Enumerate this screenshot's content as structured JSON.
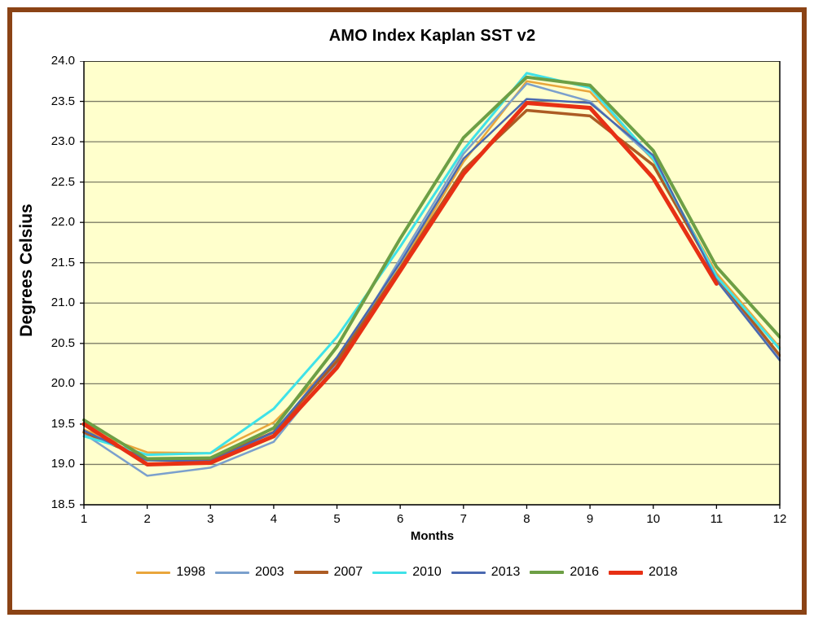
{
  "frame": {
    "border_color": "#8B4315",
    "background_color": "#FFFFFF"
  },
  "chart_data": {
    "type": "line",
    "title": "AMO Index Kaplan SST v2",
    "xlabel": "Months",
    "ylabel": "Degrees Celsius",
    "xlim": [
      1,
      12
    ],
    "ylim": [
      18.5,
      24.0
    ],
    "grid": "horizontal",
    "grid_color": "#7C7C66",
    "plot_bg": "#FFFFCC",
    "axis_color": "#000000",
    "legend_position": "bottom",
    "xticks": [
      "1",
      "2",
      "3",
      "4",
      "5",
      "6",
      "7",
      "8",
      "9",
      "10",
      "11",
      "12"
    ],
    "yticks": [
      "24.0",
      "23.5",
      "23.0",
      "22.5",
      "22.0",
      "21.5",
      "21.0",
      "20.5",
      "20.0",
      "19.5",
      "19.0",
      "18.5"
    ],
    "x": [
      1,
      2,
      3,
      4,
      5,
      6,
      7,
      8,
      9,
      10,
      11,
      12
    ],
    "series": [
      {
        "name": "1998",
        "color": "#E9A63C",
        "width": 2.5,
        "values": [
          19.43,
          19.15,
          19.14,
          19.52,
          20.3,
          21.45,
          22.75,
          23.75,
          23.62,
          22.77,
          21.37,
          20.45
        ]
      },
      {
        "name": "2003",
        "color": "#7BA0CD",
        "width": 2.5,
        "values": [
          19.38,
          18.86,
          18.96,
          19.28,
          20.25,
          21.55,
          22.85,
          23.72,
          23.5,
          22.79,
          21.3,
          20.3
        ]
      },
      {
        "name": "2007",
        "color": "#AC5C24",
        "width": 3.5,
        "values": [
          19.4,
          19.06,
          19.06,
          19.4,
          20.28,
          21.43,
          22.65,
          23.39,
          23.32,
          22.71,
          21.33,
          20.35
        ]
      },
      {
        "name": "2010",
        "color": "#3FE2E8",
        "width": 3,
        "values": [
          19.35,
          19.12,
          19.14,
          19.69,
          20.58,
          21.7,
          22.9,
          23.85,
          23.67,
          22.79,
          21.33,
          20.43
        ]
      },
      {
        "name": "2013",
        "color": "#4A69B0",
        "width": 2.5,
        "values": [
          19.42,
          19.05,
          19.04,
          19.4,
          20.33,
          21.5,
          22.79,
          23.53,
          23.48,
          22.83,
          21.28,
          20.29
        ]
      },
      {
        "name": "2016",
        "color": "#6D9F45",
        "width": 4,
        "values": [
          19.55,
          19.07,
          19.08,
          19.45,
          20.46,
          21.8,
          23.05,
          23.8,
          23.7,
          22.89,
          21.45,
          20.58
        ]
      },
      {
        "name": "2018",
        "color": "#E73014",
        "width": 5,
        "values": [
          19.5,
          19.0,
          19.02,
          19.35,
          20.2,
          21.4,
          22.6,
          23.48,
          23.42,
          22.55,
          21.24,
          null
        ]
      }
    ]
  }
}
